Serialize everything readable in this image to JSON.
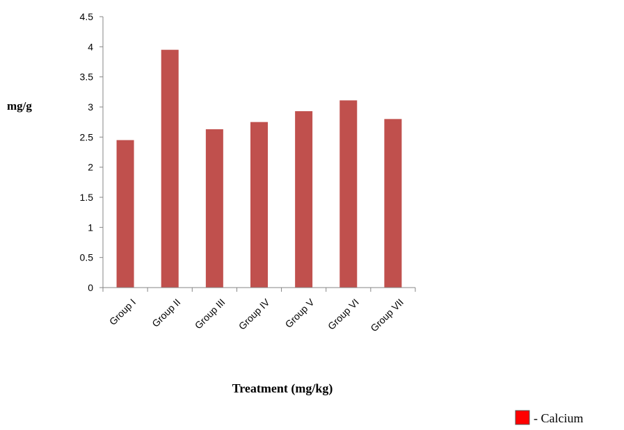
{
  "chart_data": {
    "type": "bar",
    "categories": [
      "Group I",
      "Group II",
      "Group III",
      "Group IV",
      "Group V",
      "Group VI",
      "Group VII"
    ],
    "series": [
      {
        "values": [
          2.45,
          3.95,
          2.63,
          2.75,
          2.93,
          3.11,
          2.8
        ],
        "color": "#c0504d"
      }
    ],
    "ylabel": "mg/g",
    "xlabel": "Treatment (mg/kg)",
    "ylim": [
      0,
      4.5
    ],
    "y_ticks": [
      "0",
      "0.5",
      "1",
      "1.5",
      "2",
      "2.5",
      "3",
      "3.5",
      "4",
      "4.5"
    ],
    "grid": false,
    "legend": {
      "position": "bottom-right",
      "label": "- Calcium",
      "swatch_color": "#ff0000"
    }
  }
}
